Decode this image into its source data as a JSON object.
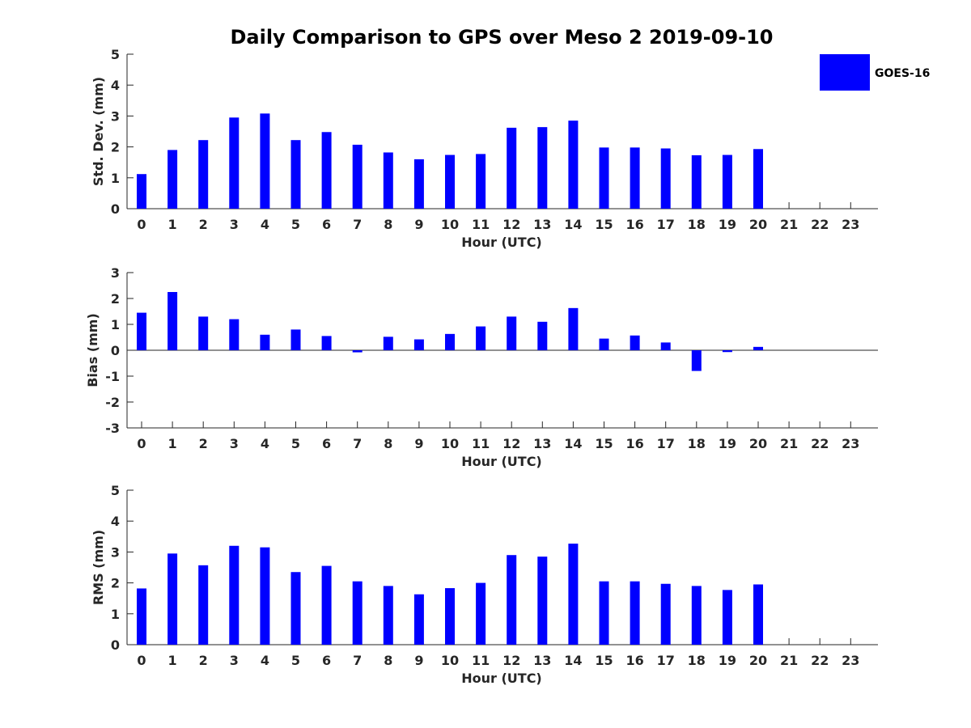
{
  "chart_data": {
    "title": "Daily Comparison to GPS over Meso 2 2019-09-10",
    "legend": {
      "label": "GOES-16",
      "color": "#0000ff",
      "position": "top-right"
    },
    "panels": [
      {
        "id": "std",
        "type": "bar",
        "ylabel": "Std. Dev. (mm)",
        "xlabel": "Hour (UTC)",
        "ylim": [
          0,
          5
        ],
        "yticks": [
          "0",
          "1",
          "2",
          "3",
          "4",
          "5"
        ],
        "categories": [
          "0",
          "1",
          "2",
          "3",
          "4",
          "5",
          "6",
          "7",
          "8",
          "9",
          "10",
          "11",
          "12",
          "13",
          "14",
          "15",
          "16",
          "17",
          "18",
          "19",
          "20",
          "21",
          "22",
          "23"
        ],
        "values": [
          1.12,
          1.9,
          2.22,
          2.95,
          3.08,
          2.22,
          2.48,
          2.07,
          1.82,
          1.6,
          1.74,
          1.77,
          2.62,
          2.64,
          2.85,
          1.98,
          1.98,
          1.95,
          1.73,
          1.74,
          1.93,
          null,
          null,
          null
        ]
      },
      {
        "id": "bias",
        "type": "bar",
        "ylabel": "Bias (mm)",
        "xlabel": "Hour (UTC)",
        "ylim": [
          -3,
          3
        ],
        "yticks": [
          "-3",
          "-2",
          "-1",
          "0",
          "1",
          "2",
          "3"
        ],
        "categories": [
          "0",
          "1",
          "2",
          "3",
          "4",
          "5",
          "6",
          "7",
          "8",
          "9",
          "10",
          "11",
          "12",
          "13",
          "14",
          "15",
          "16",
          "17",
          "18",
          "19",
          "20",
          "21",
          "22",
          "23"
        ],
        "values": [
          1.45,
          2.25,
          1.3,
          1.2,
          0.6,
          0.8,
          0.55,
          -0.08,
          0.52,
          0.42,
          0.63,
          0.92,
          1.3,
          1.1,
          1.63,
          0.45,
          0.57,
          0.3,
          -0.8,
          -0.07,
          0.13,
          null,
          null,
          null
        ]
      },
      {
        "id": "rms",
        "type": "bar",
        "ylabel": "RMS (mm)",
        "xlabel": "Hour (UTC)",
        "ylim": [
          0,
          5
        ],
        "yticks": [
          "0",
          "1",
          "2",
          "3",
          "4",
          "5"
        ],
        "categories": [
          "0",
          "1",
          "2",
          "3",
          "4",
          "5",
          "6",
          "7",
          "8",
          "9",
          "10",
          "11",
          "12",
          "13",
          "14",
          "15",
          "16",
          "17",
          "18",
          "19",
          "20",
          "21",
          "22",
          "23"
        ],
        "values": [
          1.82,
          2.95,
          2.57,
          3.2,
          3.15,
          2.35,
          2.55,
          2.05,
          1.9,
          1.63,
          1.83,
          2.0,
          2.9,
          2.85,
          3.27,
          2.05,
          2.05,
          1.97,
          1.9,
          1.77,
          1.95,
          null,
          null,
          null
        ]
      }
    ]
  }
}
